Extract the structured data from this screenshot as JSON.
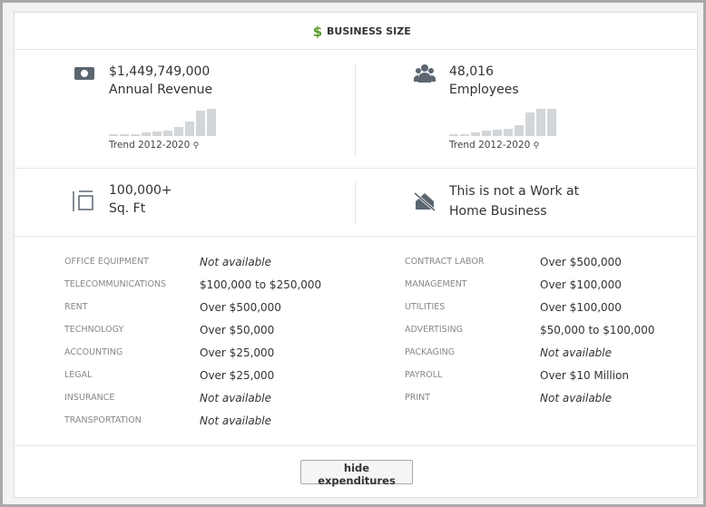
{
  "header": {
    "title": "BUSINESS SIZE"
  },
  "metrics": [
    {
      "value": "$1,449,749,000",
      "label": "Annual Revenue",
      "trend_label": "Trend 2012-2020",
      "trend": [
        2,
        2,
        2,
        4,
        5,
        6,
        10,
        16,
        28,
        30
      ]
    },
    {
      "value": "48,016",
      "label": "Employees",
      "trend_label": "Trend 2012-2020",
      "trend": [
        2,
        2,
        4,
        6,
        7,
        8,
        12,
        26,
        30,
        30
      ]
    }
  ],
  "facts": [
    {
      "value": "100,000+",
      "label": "Sq. Ft"
    },
    {
      "line1": "This is not a Work at",
      "line2": "Home Business"
    }
  ],
  "expenditures": {
    "left": [
      [
        "OFFICE EQUIPMENT",
        "Not available"
      ],
      [
        "TELECOMMUNICATIONS",
        "$100,000 to $250,000"
      ],
      [
        "RENT",
        "Over $500,000"
      ],
      [
        "TECHNOLOGY",
        "Over $50,000"
      ],
      [
        "ACCOUNTING",
        "Over $25,000"
      ],
      [
        "LEGAL",
        "Over $25,000"
      ],
      [
        "INSURANCE",
        "Not available"
      ],
      [
        "TRANSPORTATION",
        "Not available"
      ]
    ],
    "right": [
      [
        "CONTRACT LABOR",
        "Over $500,000"
      ],
      [
        "MANAGEMENT",
        "Over $100,000"
      ],
      [
        "UTILITIES",
        "Over $100,000"
      ],
      [
        "ADVERTISING",
        "$50,000 to $100,000"
      ],
      [
        "PACKAGING",
        "Not available"
      ],
      [
        "PAYROLL",
        "Over $10 Million"
      ],
      [
        "PRINT",
        "Not available"
      ]
    ]
  },
  "button": "hide expenditures"
}
